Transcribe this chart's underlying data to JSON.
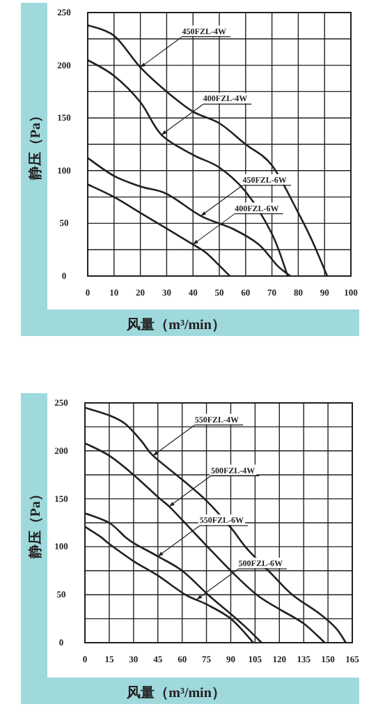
{
  "chart_data": [
    {
      "type": "line",
      "xlabel": "风量（m³/min）",
      "ylabel": "静压（Pa）",
      "xlim": [
        0,
        100
      ],
      "ylim": [
        0,
        250
      ],
      "xticks": [
        0,
        10,
        20,
        30,
        40,
        50,
        60,
        70,
        80,
        90,
        100
      ],
      "yticks": [
        0,
        {
          "value": 25,
          "label": null
        },
        50,
        {
          "value": 75,
          "label": null
        },
        100,
        {
          "value": 125,
          "label": null
        },
        150,
        {
          "value": 175,
          "label": null
        },
        200,
        {
          "value": 225,
          "label": null
        },
        250
      ],
      "grid": true,
      "marker": "none",
      "line_style": "solid",
      "series": [
        {
          "color": "#231f20",
          "x": [
            0,
            10,
            20,
            30,
            40,
            50,
            60,
            70,
            80,
            85,
            91
          ],
          "values": [
            238,
            228,
            198,
            175,
            156,
            145,
            125,
            105,
            60,
            35,
            0
          ]
        },
        {
          "color": "#231f20",
          "x": [
            0,
            10,
            20,
            28,
            40,
            50,
            60,
            70,
            76
          ],
          "values": [
            205,
            190,
            165,
            134,
            115,
            103,
            80,
            40,
            0
          ]
        },
        {
          "color": "#231f20",
          "x": [
            0,
            10,
            20,
            30,
            43,
            55,
            65,
            72,
            77
          ],
          "values": [
            112,
            95,
            85,
            78,
            57,
            45,
            30,
            10,
            0
          ]
        },
        {
          "color": "#231f20",
          "x": [
            0,
            10,
            20,
            30,
            40,
            45,
            50,
            54
          ],
          "values": [
            87,
            75,
            60,
            45,
            30,
            22,
            10,
            0
          ]
        }
      ],
      "annotations": [
        {
          "text": "450FZL-4W",
          "x": 20,
          "y": 198
        },
        {
          "text": "400FZL-4W",
          "x": 28,
          "y": 134
        },
        {
          "text": "450FZL-6W",
          "x": 43,
          "y": 57
        },
        {
          "text": "400FZL-6W",
          "x": 40,
          "y": 30
        }
      ]
    },
    {
      "type": "line",
      "xlabel": "风量（m³/min）",
      "ylabel": "静压（Pa）",
      "xlim": [
        0,
        165
      ],
      "ylim": [
        0,
        250
      ],
      "xticks": [
        0,
        15,
        30,
        45,
        60,
        75,
        90,
        105,
        120,
        135,
        150,
        165
      ],
      "yticks": [
        0,
        {
          "value": 25,
          "label": null
        },
        50,
        {
          "value": 75,
          "label": null
        },
        100,
        {
          "value": 125,
          "label": null
        },
        150,
        {
          "value": 175,
          "label": null
        },
        200,
        {
          "value": 225,
          "label": null
        },
        250
      ],
      "grid": true,
      "marker": "none",
      "line_style": "solid",
      "series": [
        {
          "color": "#231f20",
          "x": [
            0,
            15,
            25,
            35,
            42,
            60,
            75,
            90,
            100,
            115,
            128,
            145,
            155,
            161
          ],
          "values": [
            245,
            237,
            228,
            210,
            195,
            170,
            148,
            120,
            98,
            72,
            50,
            30,
            15,
            0
          ]
        },
        {
          "color": "#231f20",
          "x": [
            0,
            15,
            30,
            45,
            52,
            60,
            74,
            90,
            106,
            120,
            135,
            148
          ],
          "values": [
            208,
            195,
            175,
            152,
            142,
            128,
            103,
            75,
            50,
            35,
            20,
            0
          ]
        },
        {
          "color": "#231f20",
          "x": [
            0,
            15,
            25,
            31,
            45,
            60,
            76,
            90,
            100,
            109
          ],
          "values": [
            135,
            125,
            110,
            103,
            90,
            75,
            50,
            30,
            15,
            0
          ]
        },
        {
          "color": "#231f20",
          "x": [
            0,
            10,
            15,
            30,
            45,
            62,
            75,
            90,
            104
          ],
          "values": [
            121,
            110,
            103,
            85,
            70,
            50,
            40,
            25,
            0
          ]
        }
      ],
      "annotations": [
        {
          "text": "550FZL-4W",
          "x": 42,
          "y": 195
        },
        {
          "text": "500FZL-4W",
          "x": 52,
          "y": 142
        },
        {
          "text": "550FZL-6W",
          "x": 45,
          "y": 90
        },
        {
          "text": "500FZL-6W",
          "x": 69,
          "y": 45
        }
      ]
    }
  ]
}
